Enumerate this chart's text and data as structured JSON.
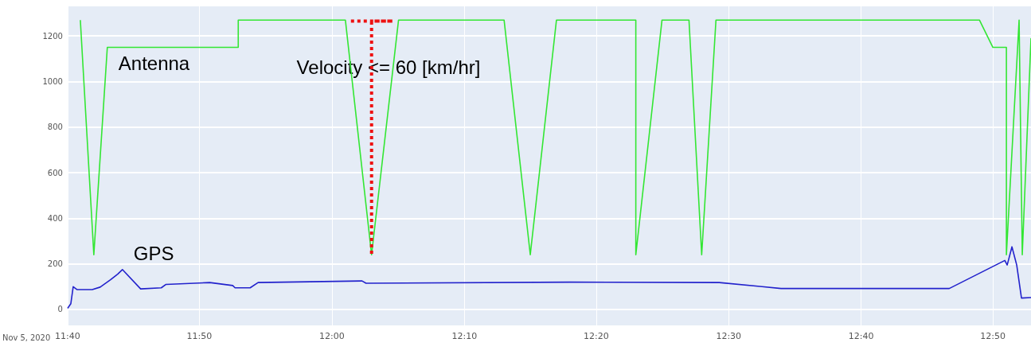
{
  "chart_data": {
    "type": "line",
    "xlabel": "Nov 5, 2020",
    "annotations": [
      "Velocity <= 60 [km/hr]"
    ],
    "xlim": [
      11.667,
      12.881
    ],
    "xticks": [
      {
        "value": 11.667,
        "label": "11:40"
      },
      {
        "value": 11.833,
        "label": "11:50"
      },
      {
        "value": 12.0,
        "label": "12:00"
      },
      {
        "value": 12.167,
        "label": "12:10"
      },
      {
        "value": 12.333,
        "label": "12:20"
      },
      {
        "value": 12.5,
        "label": "12:30"
      },
      {
        "value": 12.667,
        "label": "12:40"
      },
      {
        "value": 12.833,
        "label": "12:50"
      }
    ],
    "ylim": [
      -70,
      1330
    ],
    "yticks": [
      0,
      200,
      400,
      600,
      800,
      1000,
      1200
    ],
    "grid": true,
    "legend": false,
    "marker": "none",
    "line_style": "solid",
    "series": [
      {
        "name": "Antenna",
        "color": "#33e633",
        "x": [
          11.683,
          11.7,
          11.717,
          11.882,
          11.882,
          12.017,
          12.05,
          12.084,
          12.217,
          12.25,
          12.283,
          12.383,
          12.383,
          12.416,
          12.45,
          12.466,
          12.484,
          12.816,
          12.833,
          12.85,
          12.85,
          12.866,
          12.87,
          12.881
        ],
        "values": [
          1270,
          240,
          1150,
          1150,
          1270,
          1270,
          240,
          1270,
          1270,
          240,
          1270,
          1270,
          240,
          1270,
          1270,
          240,
          1270,
          1270,
          1150,
          1150,
          240,
          1270,
          240,
          1190
        ]
      },
      {
        "color": "#ee1111",
        "line_style": "dotted",
        "x": [
          12.024,
          12.05,
          12.077,
          12.05,
          12.05
        ],
        "values": [
          1265,
          1265,
          1265,
          1265,
          240
        ]
      },
      {
        "name": "GPS",
        "color": "#2222cc",
        "x": [
          11.667,
          11.671,
          11.674,
          11.679,
          11.698,
          11.708,
          11.721,
          11.73,
          11.736,
          11.759,
          11.785,
          11.791,
          11.846,
          11.875,
          11.878,
          11.897,
          11.907,
          12.038,
          12.043,
          12.3,
          12.488,
          12.542,
          12.566,
          12.778,
          12.848,
          12.851,
          12.857,
          12.863,
          12.869,
          12.881
        ],
        "values": [
          5,
          25,
          100,
          87,
          87,
          98,
          130,
          155,
          175,
          90,
          95,
          110,
          118,
          105,
          95,
          95,
          118,
          125,
          115,
          120,
          118,
          100,
          92,
          92,
          215,
          195,
          275,
          195,
          50,
          52
        ]
      }
    ]
  }
}
